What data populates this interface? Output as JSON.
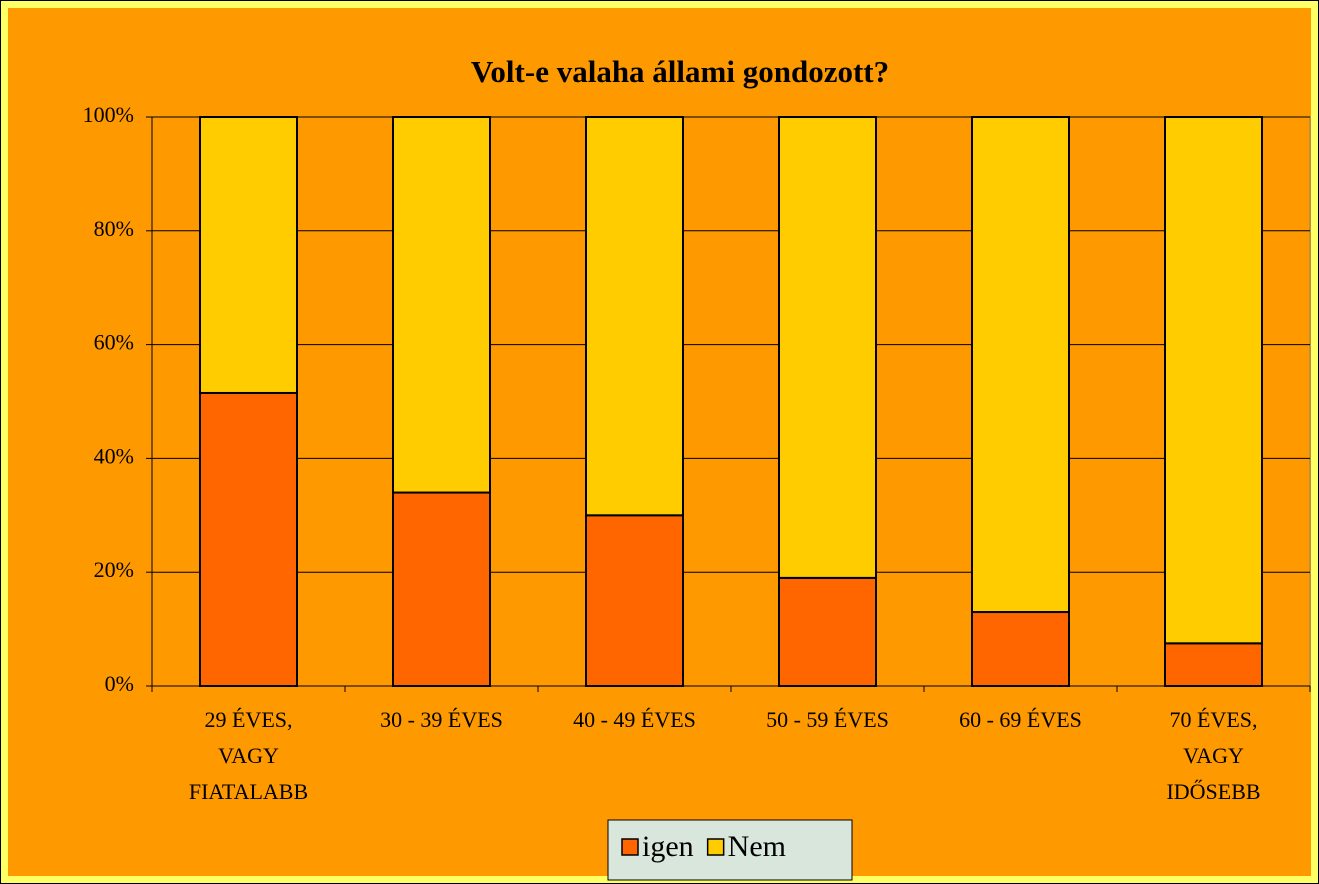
{
  "chart_data": {
    "type": "stacked_bar",
    "title": "Volt-e valaha állami gondozott?",
    "categories": [
      "29 ÉVES, VAGY FIATALABB",
      "30 - 39 ÉVES",
      "40 - 49 ÉVES",
      "50 - 59 ÉVES",
      "60 - 69 ÉVES",
      "70 ÉVES, VAGY IDŐSEBB"
    ],
    "series": [
      {
        "name": "igen",
        "color": "#ff6600",
        "values": [
          51.5,
          34,
          30,
          19,
          13,
          7.5
        ]
      },
      {
        "name": "Nem",
        "color": "#ffcc00",
        "values": [
          48.5,
          66,
          70,
          81,
          87,
          92.5
        ]
      }
    ],
    "ylim": [
      0,
      100
    ],
    "yticks": [
      {
        "value": 0,
        "label": "0%"
      },
      {
        "value": 20,
        "label": "20%"
      },
      {
        "value": 40,
        "label": "40%"
      },
      {
        "value": 60,
        "label": "60%"
      },
      {
        "value": 80,
        "label": "80%"
      },
      {
        "value": 100,
        "label": "100%"
      }
    ],
    "grid": true,
    "legend": "bottom"
  }
}
